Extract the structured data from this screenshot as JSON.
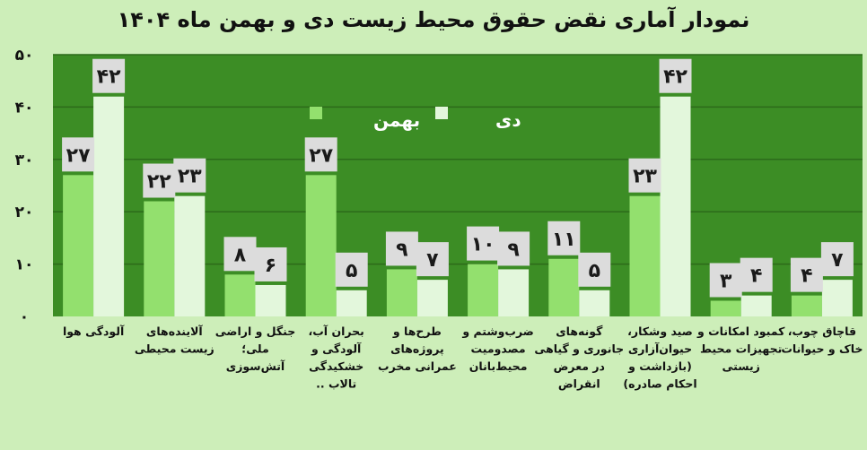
{
  "chart_data": {
    "type": "bar",
    "title": "نمودار آماری نقض حقوق محیط زیست دی و بهمن ماه ۱۴۰۴",
    "categories": [
      [
        "آلودگی هوا"
      ],
      [
        "آلاینده‌های",
        "زیست محیطی"
      ],
      [
        "جنگل و اراضی",
        "ملی؛",
        "آتش‌سوزی"
      ],
      [
        "بحران آب،",
        "آلودگی و",
        "خشکیدگی",
        "تالاب .."
      ],
      [
        "طرح‌ها و",
        "پروژه‌های",
        "عمرانی مخرب"
      ],
      [
        "ضرب‌وشتم و",
        "مصدومیت",
        "محیط‌بانان"
      ],
      [
        "گونه‌های",
        "جانوری و گیاهی",
        "در معرض",
        "انقراض"
      ],
      [
        "صید وشکار،",
        "حیوان‌آزاری",
        "(بازداشت و",
        "احکام صادره)"
      ],
      [
        "کمبود امکانات و",
        "تجهیزات محیط",
        "زیستی"
      ],
      [
        "قاچاق چوب،",
        "خاک و حیوانات"
      ]
    ],
    "series": [
      {
        "name": "بهمن",
        "color": "#93e06e",
        "values": [
          27,
          22,
          8,
          27,
          9,
          10,
          11,
          23,
          3,
          4
        ]
      },
      {
        "name": "دی",
        "color": "#e3f7dc",
        "values": [
          42,
          23,
          6,
          5,
          7,
          9,
          5,
          42,
          4,
          7
        ]
      }
    ],
    "data_labels": [
      [
        "۲۷",
        "۲۲",
        "۸",
        "۲۷",
        "۹",
        "۱۰",
        "۱۱",
        "۲۳",
        "۳",
        "۴"
      ],
      [
        "۴۲",
        "۲۳",
        "۶",
        "۵",
        "۷",
        "۹",
        "۵",
        "۴۲",
        "۴",
        "۷"
      ]
    ],
    "yticks": [
      {
        "value": 0,
        "label": "۰"
      },
      {
        "value": 10,
        "label": "۱۰"
      },
      {
        "value": 20,
        "label": "۲۰"
      },
      {
        "value": 30,
        "label": "۳۰"
      },
      {
        "value": 40,
        "label": "۴۰"
      },
      {
        "value": 50,
        "label": "۵۰"
      }
    ],
    "ylim": [
      0,
      50
    ],
    "grid": true,
    "legend_position": "top-center",
    "colors": {
      "plot_background": "#3c8d25",
      "grid_line": "#2c6a1a",
      "data_label_box": "#dcdcdc",
      "page_background": "#cdeeb9"
    }
  }
}
